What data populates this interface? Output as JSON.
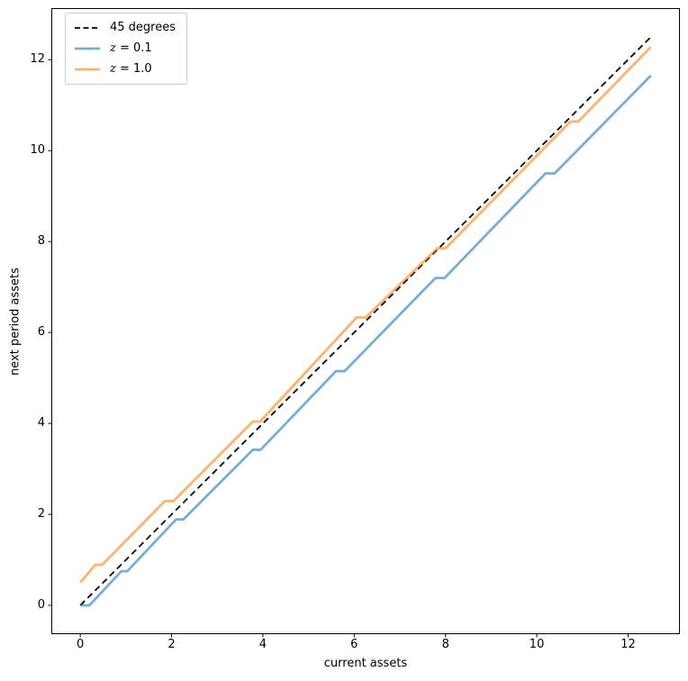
{
  "figure": {
    "background": "#ffffff"
  },
  "chart_data": {
    "type": "line",
    "title": "",
    "xlabel": "current assets",
    "ylabel": "next period assets",
    "xlim": [
      -0.625,
      13.125
    ],
    "ylim": [
      -0.625,
      13.125
    ],
    "x_ticks": [
      "0",
      "2",
      "4",
      "6",
      "8",
      "10",
      "12"
    ],
    "x_tick_values": [
      0,
      2,
      4,
      6,
      8,
      10,
      12
    ],
    "y_ticks": [
      "0",
      "2",
      "4",
      "6",
      "8",
      "10",
      "12"
    ],
    "y_tick_values": [
      0,
      2,
      4,
      6,
      8,
      10,
      12
    ],
    "grid": false,
    "legend": {
      "location": "upper left",
      "border_color": "#cccccc"
    },
    "series": [
      {
        "name": "45 degrees",
        "math": false,
        "color": "#000000",
        "dash": "dashed",
        "opacity": 1,
        "width": 1.8,
        "x": [
          0,
          12.5
        ],
        "y": [
          0,
          12.5
        ]
      },
      {
        "name": "z = 0.1",
        "math": true,
        "color": "#1f77b4",
        "dash": "solid",
        "opacity": 0.6,
        "width": 2.8,
        "x": [
          0,
          0.2,
          0.9,
          1.03,
          2.1,
          2.26,
          3.78,
          3.95,
          5.6,
          5.79,
          7.78,
          7.98,
          10.19,
          10.39,
          12.5
        ],
        "y": [
          0,
          0,
          0.75,
          0.75,
          1.89,
          1.89,
          3.42,
          3.42,
          5.15,
          5.15,
          7.2,
          7.2,
          9.5,
          9.5,
          11.65
        ]
      },
      {
        "name": "z = 1.0",
        "math": true,
        "color": "#ff7f0e",
        "dash": "solid",
        "opacity": 0.6,
        "width": 2.8,
        "x": [
          0,
          0.33,
          0.48,
          1.85,
          2.04,
          3.78,
          3.94,
          6.05,
          6.25,
          7.82,
          8.0,
          10.74,
          10.91,
          12.5
        ],
        "y": [
          0.5,
          0.89,
          0.89,
          2.29,
          2.29,
          4.04,
          4.04,
          6.33,
          6.33,
          7.85,
          7.85,
          10.64,
          10.64,
          12.28
        ]
      }
    ]
  }
}
